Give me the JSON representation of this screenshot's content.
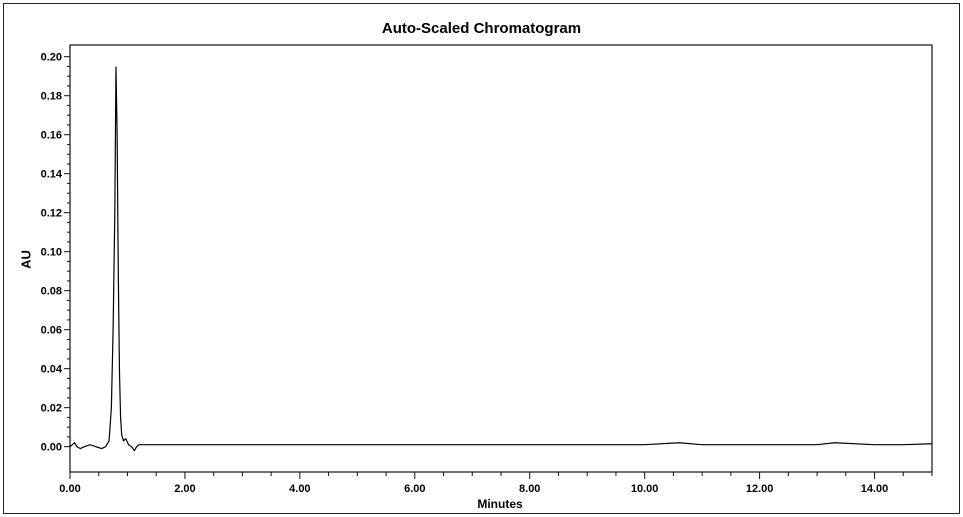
{
  "chart_data": {
    "type": "line",
    "title": "Auto-Scaled Chromatogram",
    "xlabel": "Minutes",
    "ylabel": "AU",
    "xlim": [
      0.0,
      15.0
    ],
    "ylim": [
      -0.013,
      0.206
    ],
    "grid": false,
    "x_ticks": [
      "0.00",
      "2.00",
      "4.00",
      "6.00",
      "8.00",
      "10.00",
      "12.00",
      "14.00"
    ],
    "y_ticks": [
      "0.00",
      "0.02",
      "0.04",
      "0.06",
      "0.08",
      "0.10",
      "0.12",
      "0.14",
      "0.16",
      "0.18",
      "0.20"
    ],
    "series": [
      {
        "color": "#000000",
        "x": [
          0.0,
          0.08,
          0.12,
          0.18,
          0.25,
          0.35,
          0.45,
          0.55,
          0.62,
          0.68,
          0.72,
          0.75,
          0.78,
          0.8,
          0.82,
          0.84,
          0.86,
          0.88,
          0.9,
          0.93,
          0.97,
          1.02,
          1.07,
          1.12,
          1.16,
          1.2,
          1.3,
          1.5,
          2.0,
          3.0,
          4.0,
          5.0,
          6.0,
          7.0,
          8.0,
          9.0,
          10.0,
          10.6,
          11.0,
          12.0,
          13.0,
          13.3,
          14.0,
          14.5,
          15.0
        ],
        "y": [
          0.0,
          0.002,
          0.0,
          -0.001,
          0.0,
          0.001,
          0.0,
          -0.001,
          0.0,
          0.003,
          0.02,
          0.06,
          0.12,
          0.195,
          0.16,
          0.09,
          0.04,
          0.015,
          0.006,
          0.003,
          0.004,
          0.001,
          0.0,
          -0.002,
          0.0,
          0.001,
          0.001,
          0.001,
          0.001,
          0.001,
          0.001,
          0.001,
          0.001,
          0.001,
          0.001,
          0.001,
          0.001,
          0.002,
          0.001,
          0.001,
          0.001,
          0.002,
          0.001,
          0.001,
          0.0015
        ]
      }
    ]
  }
}
